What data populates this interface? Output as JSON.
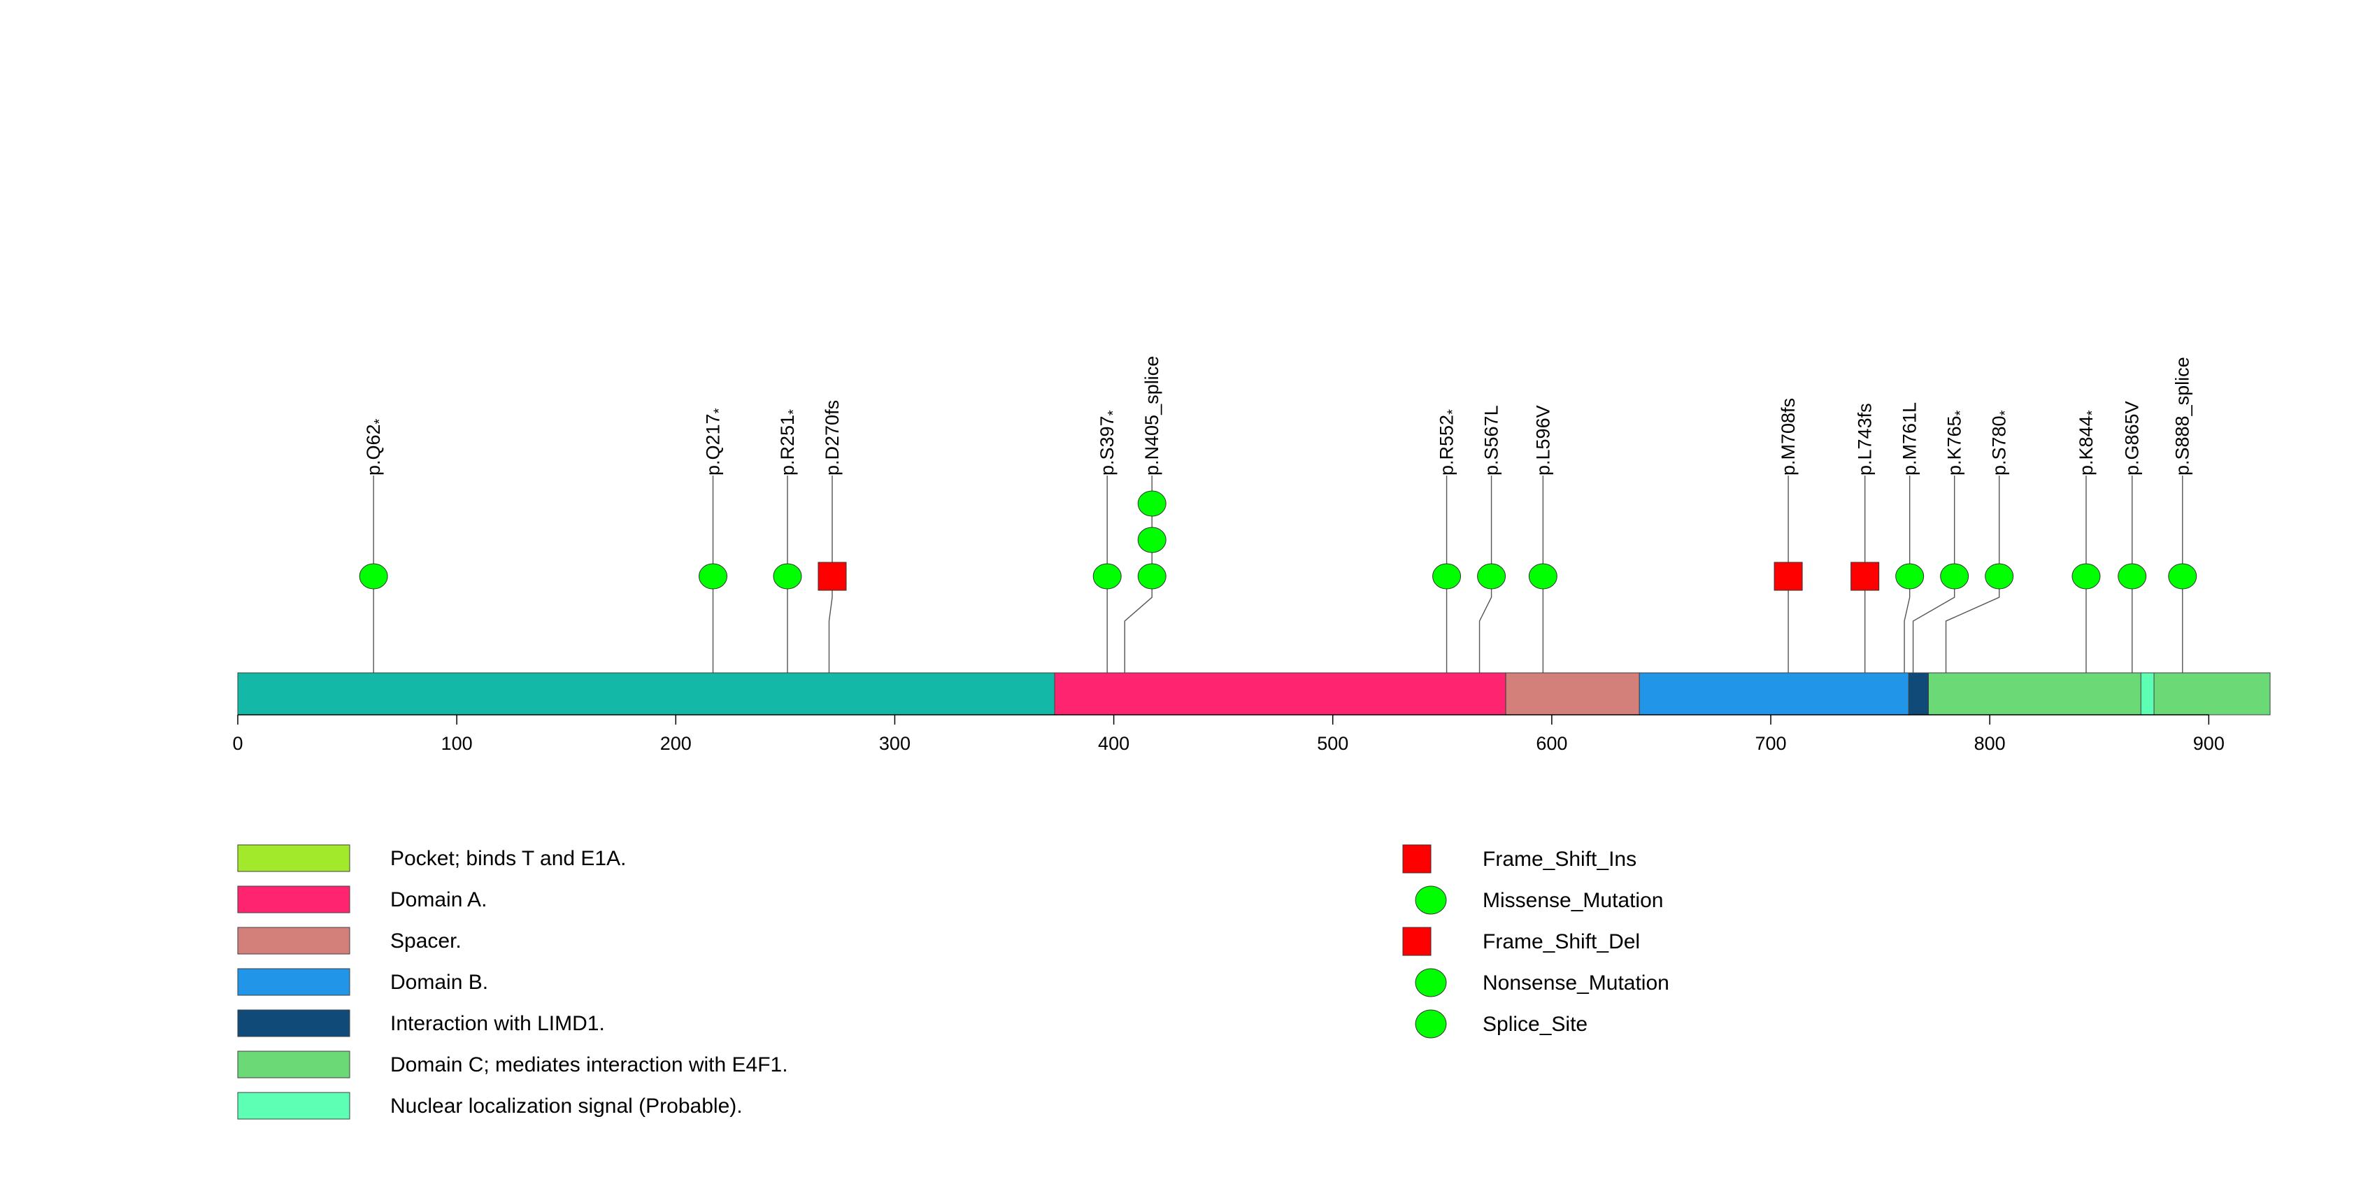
{
  "chart_data": {
    "type": "lollipop",
    "protein_length": 928,
    "x_ticks": [
      0,
      100,
      200,
      300,
      400,
      500,
      600,
      700,
      800,
      900
    ],
    "backbone_color": "#14B8A6",
    "domains": [
      {
        "name": "Pocket; binds T and E1A.",
        "start": 373,
        "end": 928,
        "color": "#A2E82B"
      },
      {
        "name": "Domain A.",
        "start": 373,
        "end": 579,
        "color": "#FF2470"
      },
      {
        "name": "Spacer.",
        "start": 579,
        "end": 640,
        "color": "#D4807A"
      },
      {
        "name": "Domain B.",
        "start": 640,
        "end": 763,
        "color": "#2196E8"
      },
      {
        "name": "Interaction with LIMD1.",
        "start": 763,
        "end": 772,
        "color": "#0F4A78"
      },
      {
        "name": "Domain C; mediates interaction with E4F1.",
        "start": 772,
        "end": 928,
        "color": "#6AD976"
      },
      {
        "name": "Nuclear localization signal (Probable).",
        "start": 869,
        "end": 875,
        "color": "#5CFFB4"
      }
    ],
    "mutations": [
      {
        "label": "p.Q62*",
        "position": 62,
        "count": 1,
        "type": "Nonsense_Mutation"
      },
      {
        "label": "p.Q217*",
        "position": 217,
        "count": 1,
        "type": "Nonsense_Mutation"
      },
      {
        "label": "p.R251*",
        "position": 251,
        "count": 1,
        "type": "Nonsense_Mutation"
      },
      {
        "label": "p.D270fs",
        "position": 270,
        "count": 1,
        "type": "Frame_Shift_Del"
      },
      {
        "label": "p.S397*",
        "position": 397,
        "count": 1,
        "type": "Nonsense_Mutation"
      },
      {
        "label": "p.N405_splice",
        "position": 405,
        "count": 3,
        "type": "Splice_Site"
      },
      {
        "label": "p.R552*",
        "position": 552,
        "count": 1,
        "type": "Nonsense_Mutation"
      },
      {
        "label": "p.S567L",
        "position": 567,
        "count": 1,
        "type": "Missense_Mutation"
      },
      {
        "label": "p.L596V",
        "position": 596,
        "count": 1,
        "type": "Missense_Mutation"
      },
      {
        "label": "p.M708fs",
        "position": 708,
        "count": 1,
        "type": "Frame_Shift_Ins"
      },
      {
        "label": "p.L743fs",
        "position": 743,
        "count": 1,
        "type": "Frame_Shift_Del"
      },
      {
        "label": "p.M761L",
        "position": 761,
        "count": 1,
        "type": "Missense_Mutation"
      },
      {
        "label": "p.K765*",
        "position": 765,
        "count": 1,
        "type": "Nonsense_Mutation"
      },
      {
        "label": "p.S780*",
        "position": 780,
        "count": 1,
        "type": "Nonsense_Mutation"
      },
      {
        "label": "p.K844*",
        "position": 844,
        "count": 1,
        "type": "Nonsense_Mutation"
      },
      {
        "label": "p.G865V",
        "position": 865,
        "count": 1,
        "type": "Missense_Mutation"
      },
      {
        "label": "p.S888_splice",
        "position": 888,
        "count": 1,
        "type": "Splice_Site"
      }
    ],
    "mutation_legend": [
      {
        "name": "Frame_Shift_Ins",
        "shape": "square",
        "color": "#FF0000"
      },
      {
        "name": "Missense_Mutation",
        "shape": "circle",
        "color": "#00FF00"
      },
      {
        "name": "Frame_Shift_Del",
        "shape": "square",
        "color": "#FF0000"
      },
      {
        "name": "Nonsense_Mutation",
        "shape": "circle",
        "color": "#00FF00"
      },
      {
        "name": "Splice_Site",
        "shape": "circle",
        "color": "#00FF00"
      }
    ]
  }
}
